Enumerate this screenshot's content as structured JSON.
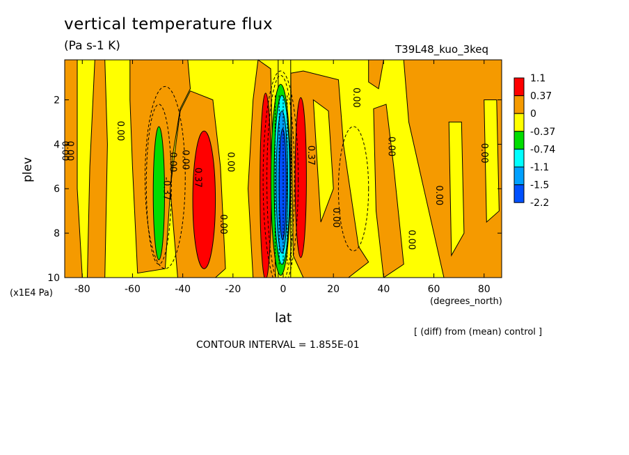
{
  "chart_data": {
    "type": "heatmap",
    "title": "vertical temperature flux",
    "units": "(Pa s-1 K)",
    "run_label": "T39L48_kuo_3keq",
    "xlabel": "lat",
    "x_unit_label": "(degrees_north)",
    "ylabel": "plev",
    "y_unit_label": "(x1E4 Pa)",
    "footnote": "[ (diff) from (mean) control ]",
    "contour_interval_label": "CONTOUR INTERVAL = 1.855E-01",
    "xlim": [
      -87,
      87
    ],
    "ylim": [
      10,
      0.2
    ],
    "x_ticks": [
      -80,
      -60,
      -40,
      -20,
      0,
      20,
      40,
      60,
      80
    ],
    "y_ticks": [
      2,
      4,
      6,
      8,
      10
    ],
    "colorbar": {
      "labels": [
        "1.1",
        "0.37",
        "0",
        "-0.37",
        "-0.74",
        "-1.1",
        "-1.5",
        "-2.2"
      ],
      "colors": [
        "#ff0000",
        "#f59a00",
        "#ffff00",
        "#00dd00",
        "#00ffff",
        "#00a0ff",
        "#0050ff"
      ]
    },
    "contour_labels": [
      "0.00",
      "0.37",
      "-0.37"
    ]
  }
}
